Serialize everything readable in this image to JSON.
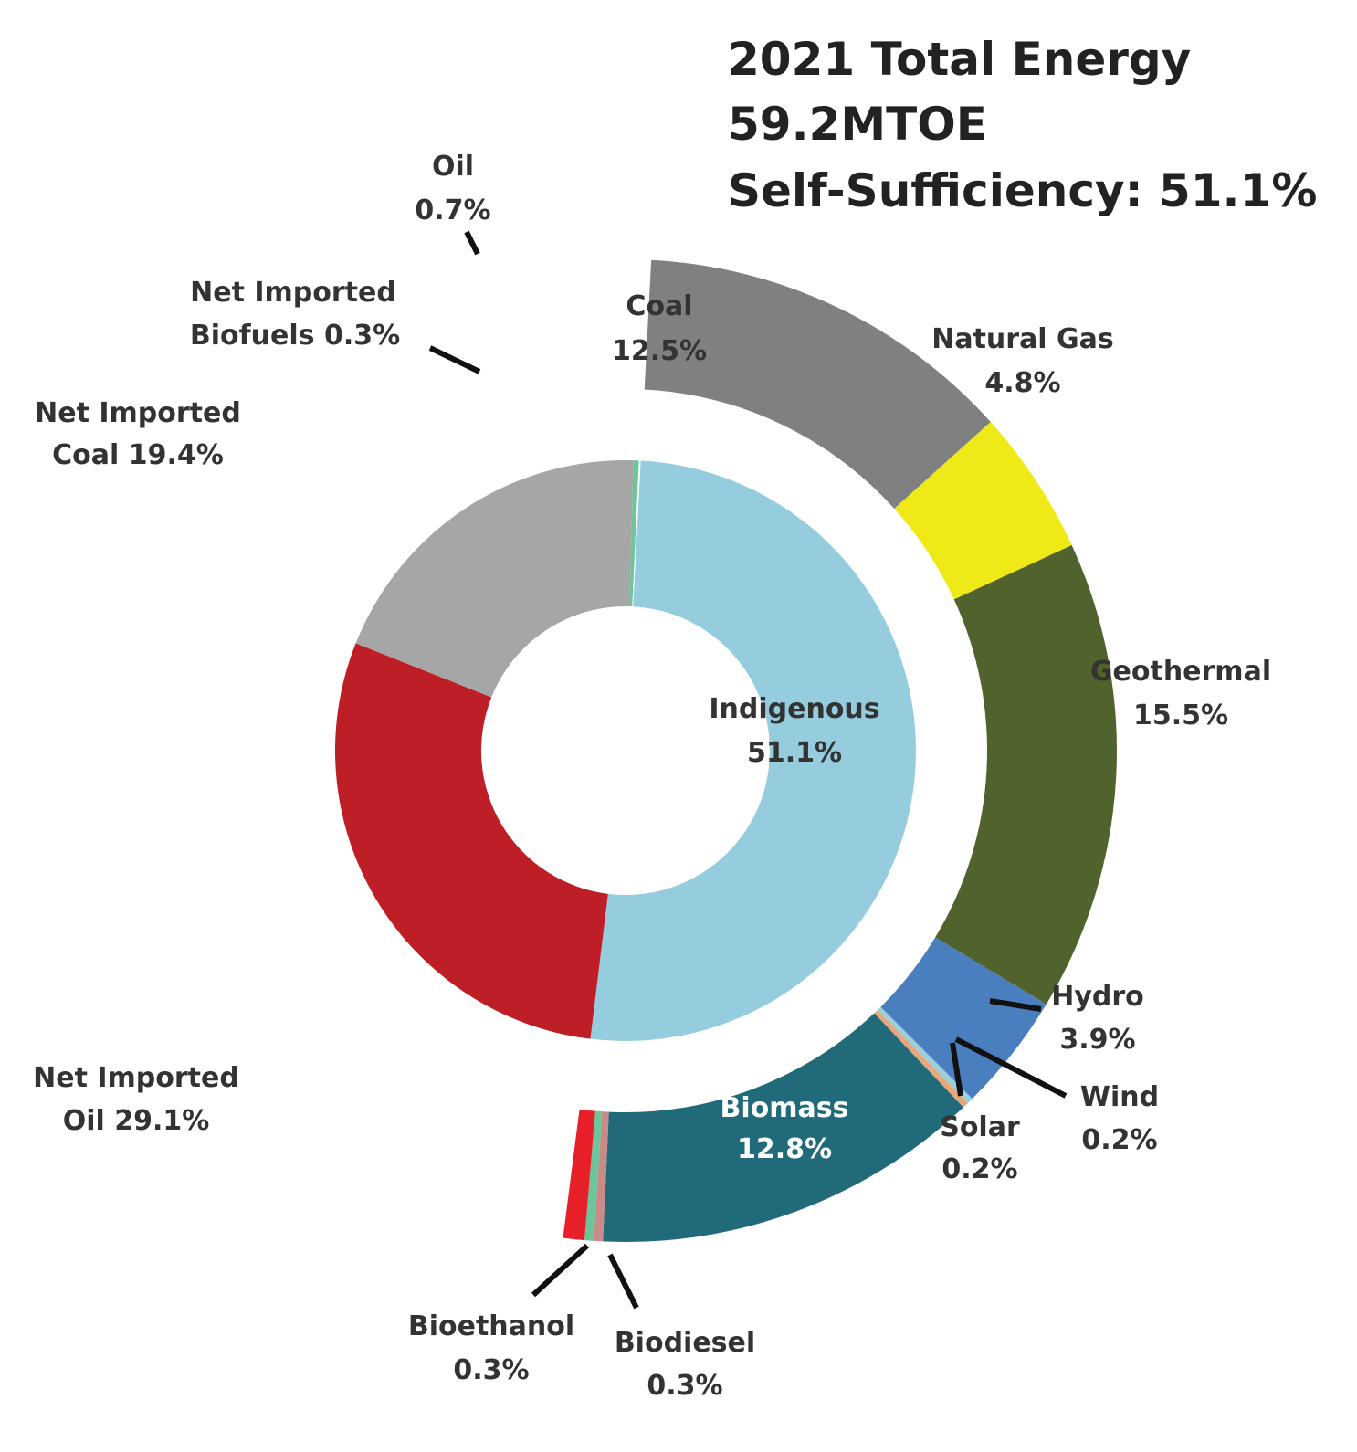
{
  "chart_data": {
    "type": "pie",
    "subtype": "nested-donut",
    "title": [
      "2021 Total Energy",
      "59.2MTOE",
      "Self-Sufficiency: 51.1%"
    ],
    "total": "59.2MTOE",
    "self_sufficiency": "51.1%",
    "inner_ring": [
      {
        "name": "Indigenous",
        "value": 51.1,
        "label": "51.1%",
        "color": "#95CDDE"
      },
      {
        "name": "Net Imported Oil",
        "value": 29.1,
        "label": "29.1%",
        "color": "#BE1E26"
      },
      {
        "name": "Net Imported Coal",
        "value": 19.4,
        "label": "19.4%",
        "color": "#A6A6A6"
      },
      {
        "name": "Net Imported Biofuels",
        "value": 0.3,
        "label": "0.3%",
        "color": "#6DC59A"
      }
    ],
    "outer_ring": [
      {
        "name": "Coal",
        "value": 12.5,
        "label": "12.5%",
        "color": "#808080"
      },
      {
        "name": "Natural Gas",
        "value": 4.8,
        "label": "4.8%",
        "color": "#EEE917"
      },
      {
        "name": "Geothermal",
        "value": 15.5,
        "label": "15.5%",
        "color": "#50632C"
      },
      {
        "name": "Hydro",
        "value": 3.9,
        "label": "3.9%",
        "color": "#4A7FBF"
      },
      {
        "name": "Wind",
        "value": 0.2,
        "label": "0.2%",
        "color": "#9ECFD8"
      },
      {
        "name": "Solar",
        "value": 0.2,
        "label": "0.2%",
        "color": "#E8A77A"
      },
      {
        "name": "Biomass",
        "value": 12.8,
        "label": "12.8%",
        "color": "#206A7A"
      },
      {
        "name": "Biodiesel",
        "value": 0.3,
        "label": "0.3%",
        "color": "#C98A8A"
      },
      {
        "name": "Bioethanol",
        "value": 0.3,
        "label": "0.3%",
        "color": "#6DC59A"
      },
      {
        "name": "Oil",
        "value": 0.7,
        "label": "0.7%",
        "color": "#E8202A"
      }
    ],
    "labels": {
      "oil": [
        "Oil",
        "0.7%"
      ],
      "coal": [
        "Coal",
        "12.5%"
      ],
      "natural_gas": [
        "Natural Gas",
        "4.8%"
      ],
      "geothermal": [
        "Geothermal",
        "15.5%"
      ],
      "hydro": [
        "Hydro",
        "3.9%"
      ],
      "wind": [
        "Wind",
        "0.2%"
      ],
      "solar": [
        "Solar",
        "0.2%"
      ],
      "biomass": [
        "Biomass",
        "12.8%"
      ],
      "biodiesel": [
        "Biodiesel",
        "0.3%"
      ],
      "bioethanol": [
        "Bioethanol",
        "0.3%"
      ],
      "indigenous": [
        "Indigenous",
        "51.1%"
      ],
      "net_imported_oil": [
        "Net Imported",
        "Oil 29.1%"
      ],
      "net_imported_coal": [
        "Net Imported",
        "Coal 19.4%"
      ],
      "net_imported_biofuels": [
        "Net Imported",
        "Biofuels 0.3%"
      ]
    }
  }
}
